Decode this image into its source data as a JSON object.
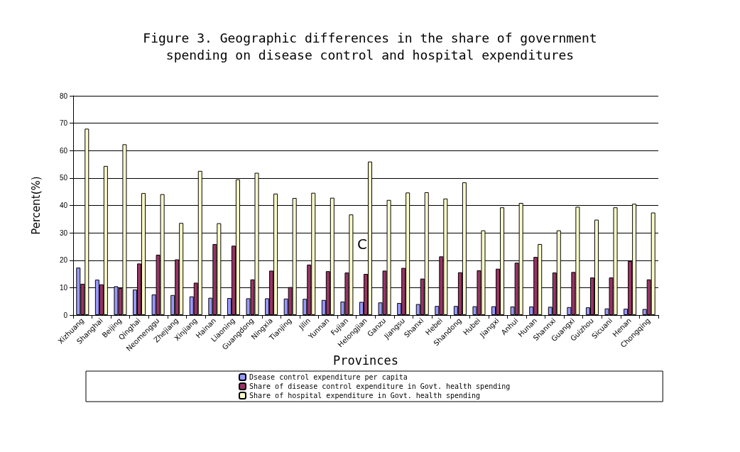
{
  "chart_data": {
    "type": "bar",
    "title": "Figure 3. Geographic differences in the share of government\nspending on disease control and hospital expenditures",
    "xlabel": "Provinces",
    "ylabel": "Percent(%)",
    "categories": [
      "Xizhuang",
      "Shanghai",
      "Beijing",
      "Qinghai",
      "Neomenggu",
      "Zhejiang",
      "Xinjiang",
      "Hainan",
      "Liaoning",
      "Guangdong",
      "Ningxia",
      "Tianjing",
      "Jilin",
      "Yunnan",
      "Fujian",
      "Helongjian",
      "Ganzu",
      "Jiangsu",
      "Shanxi",
      "Hebei",
      "Shandong",
      "Hubei",
      "Jiangxi",
      "Anhui",
      "Hunan",
      "Shannxi",
      "Guangxi",
      "Guizhou",
      "Sicuani",
      "Henan",
      "Chongqing"
    ],
    "series": [
      {
        "name": "Dsease control expenditure per capita",
        "color": "#9999ff",
        "values": [
          17.3,
          12.9,
          10.5,
          9.3,
          7.5,
          7.3,
          6.8,
          6.3,
          6.2,
          6.1,
          6.1,
          6.0,
          5.9,
          5.5,
          4.9,
          4.8,
          4.6,
          4.4,
          4.0,
          3.3,
          3.3,
          3.2,
          3.2,
          3.1,
          3.1,
          3.0,
          2.9,
          2.8,
          2.4,
          2.3,
          2.2
        ]
      },
      {
        "name": "Share of disease control expenditure in Govt. health spending",
        "color": "#993366",
        "values": [
          11.4,
          11.2,
          9.8,
          18.8,
          22.0,
          20.3,
          11.8,
          25.9,
          25.3,
          13.0,
          16.2,
          10.2,
          18.4,
          16.0,
          15.5,
          15.0,
          16.2,
          17.2,
          13.3,
          21.4,
          15.6,
          16.3,
          16.9,
          19.1,
          21.2,
          15.5,
          15.7,
          13.7,
          13.7,
          19.7,
          13.0
        ]
      },
      {
        "name": "Share of hospital expenditure in Govt. health spending",
        "color": "#ffffcc",
        "values": [
          68.0,
          54.4,
          62.3,
          44.5,
          44.1,
          33.6,
          52.6,
          33.5,
          49.5,
          51.9,
          44.3,
          42.7,
          44.6,
          42.8,
          36.7,
          56.0,
          42.0,
          44.7,
          44.8,
          42.5,
          48.4,
          30.9,
          39.3,
          40.9,
          25.9,
          30.9,
          39.5,
          34.8,
          39.3,
          40.6,
          37.4
        ]
      }
    ],
    "ylim": [
      0,
      80
    ],
    "yticks": [
      0,
      10,
      20,
      30,
      40,
      50,
      60,
      70,
      80
    ],
    "grid": "y",
    "legend": "bottom",
    "annotations": [
      {
        "text": "C",
        "x": "Helongjian",
        "y": 26
      }
    ]
  }
}
